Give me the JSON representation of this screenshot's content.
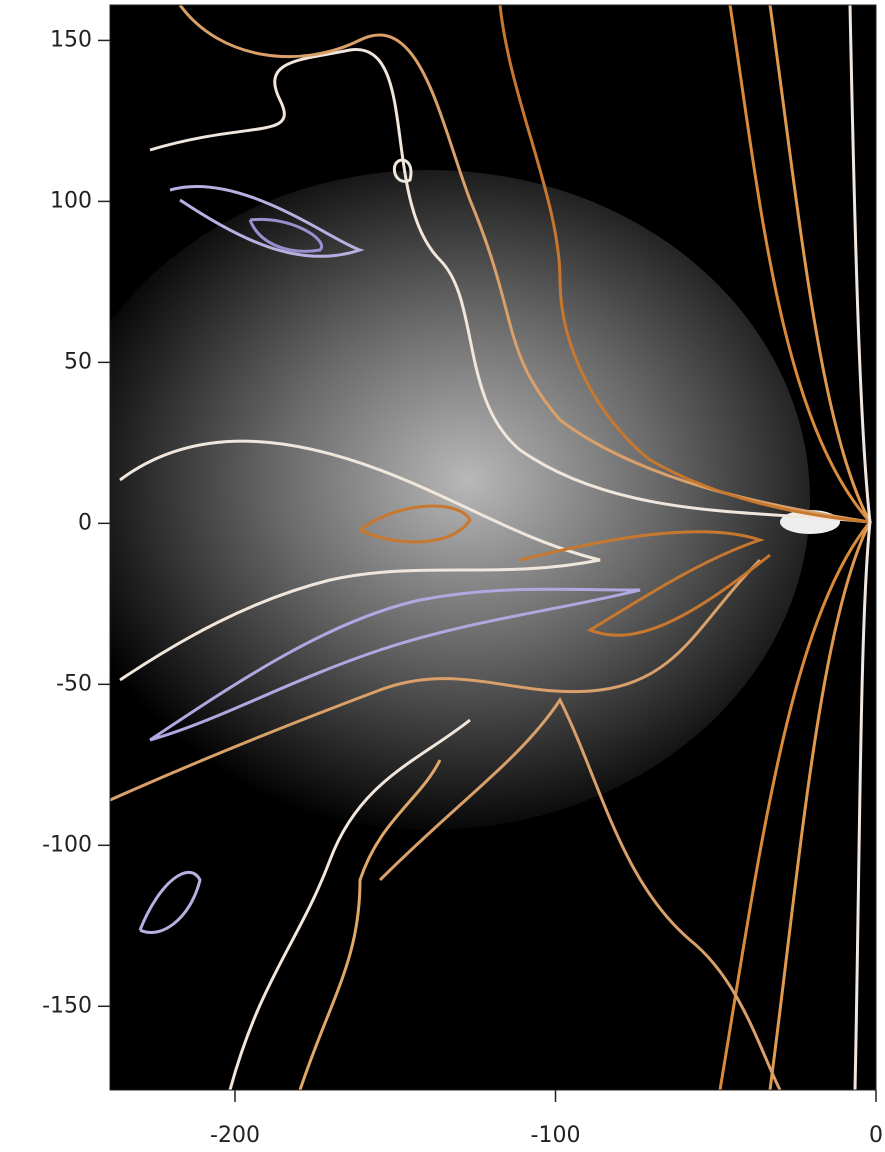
{
  "chart_data": {
    "type": "contour",
    "xlim": [
      -239,
      0
    ],
    "ylim": [
      -176,
      161
    ],
    "xticks": [
      -200,
      -100,
      0
    ],
    "yticks": [
      150,
      100,
      50,
      0,
      -50,
      -100,
      -150
    ]
  }
}
